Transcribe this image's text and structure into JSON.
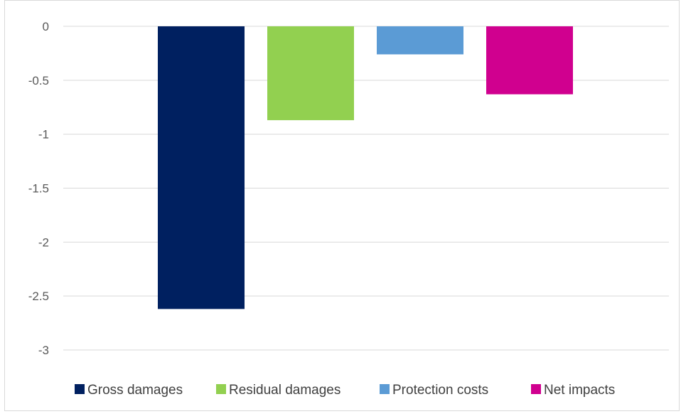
{
  "chart_data": {
    "type": "bar",
    "title": "",
    "xlabel": "",
    "ylabel": "",
    "ylim": [
      -3,
      0
    ],
    "yticks": [
      0,
      -0.5,
      -1,
      -1.5,
      -2,
      -2.5,
      -3
    ],
    "ytick_labels": [
      "0",
      "-0.5",
      "-1",
      "-1.5",
      "-2",
      "-2.5",
      "-3"
    ],
    "grid": true,
    "legend_position": "bottom",
    "series": [
      {
        "name": "Gross damages",
        "value": -2.62,
        "color": "#002060"
      },
      {
        "name": "Residual damages",
        "value": -0.87,
        "color": "#92d050"
      },
      {
        "name": "Protection costs",
        "value": -0.26,
        "color": "#5b9bd5"
      },
      {
        "name": "Net impacts",
        "value": -0.63,
        "color": "#d0008f"
      }
    ]
  }
}
